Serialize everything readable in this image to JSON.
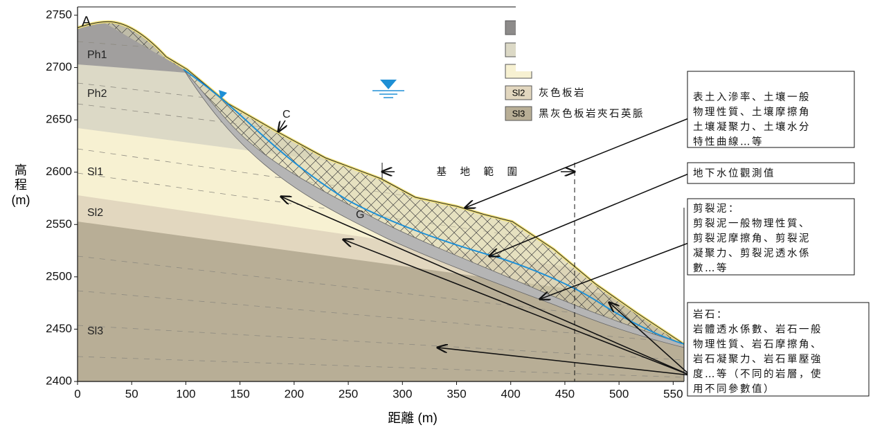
{
  "panel_label": "A",
  "axes": {
    "x": {
      "label": "距離 (m)",
      "lim": [
        0,
        560
      ],
      "ticks": [
        0,
        50,
        100,
        150,
        200,
        250,
        300,
        350,
        400,
        450,
        500,
        550
      ]
    },
    "y": {
      "label_lines": [
        "高",
        "程",
        "(m)"
      ],
      "lim": [
        2400,
        2757
      ],
      "ticks": [
        2400,
        2450,
        2500,
        2550,
        2600,
        2650,
        2700,
        2750
      ]
    }
  },
  "layers": [
    "Ph1",
    "Ph2",
    "Sl1",
    "Sl2",
    "Sl3"
  ],
  "features": {
    "colluvium": "C",
    "gouge": "G",
    "site_range": "基　地　範　圍"
  },
  "legend": [
    {
      "code": "Sl2",
      "label": "灰色板岩"
    },
    {
      "code": "Sl3",
      "label": "黑灰色板岩夾石英脈"
    }
  ],
  "boxes": [
    {
      "lines": [
        "表土入滲率、土壤一般",
        "物理性質、土壤摩擦角",
        "土壤凝聚力、土壤水分",
        "特性曲線…等"
      ]
    },
    {
      "lines": [
        "地下水位觀測值"
      ]
    },
    {
      "lines": [
        "剪裂泥：",
        "剪裂泥一般物理性質、",
        "剪裂泥摩擦角、剪裂泥",
        "凝聚力、剪裂泥透水係",
        "數…等"
      ]
    },
    {
      "lines": [
        "岩石：",
        "岩體透水係數、岩石一般",
        "物理性質、岩石摩擦角、",
        "岩石凝聚力、岩石單壓強",
        "度…等（不同的岩層，使",
        "用不同參數值）"
      ]
    }
  ]
}
